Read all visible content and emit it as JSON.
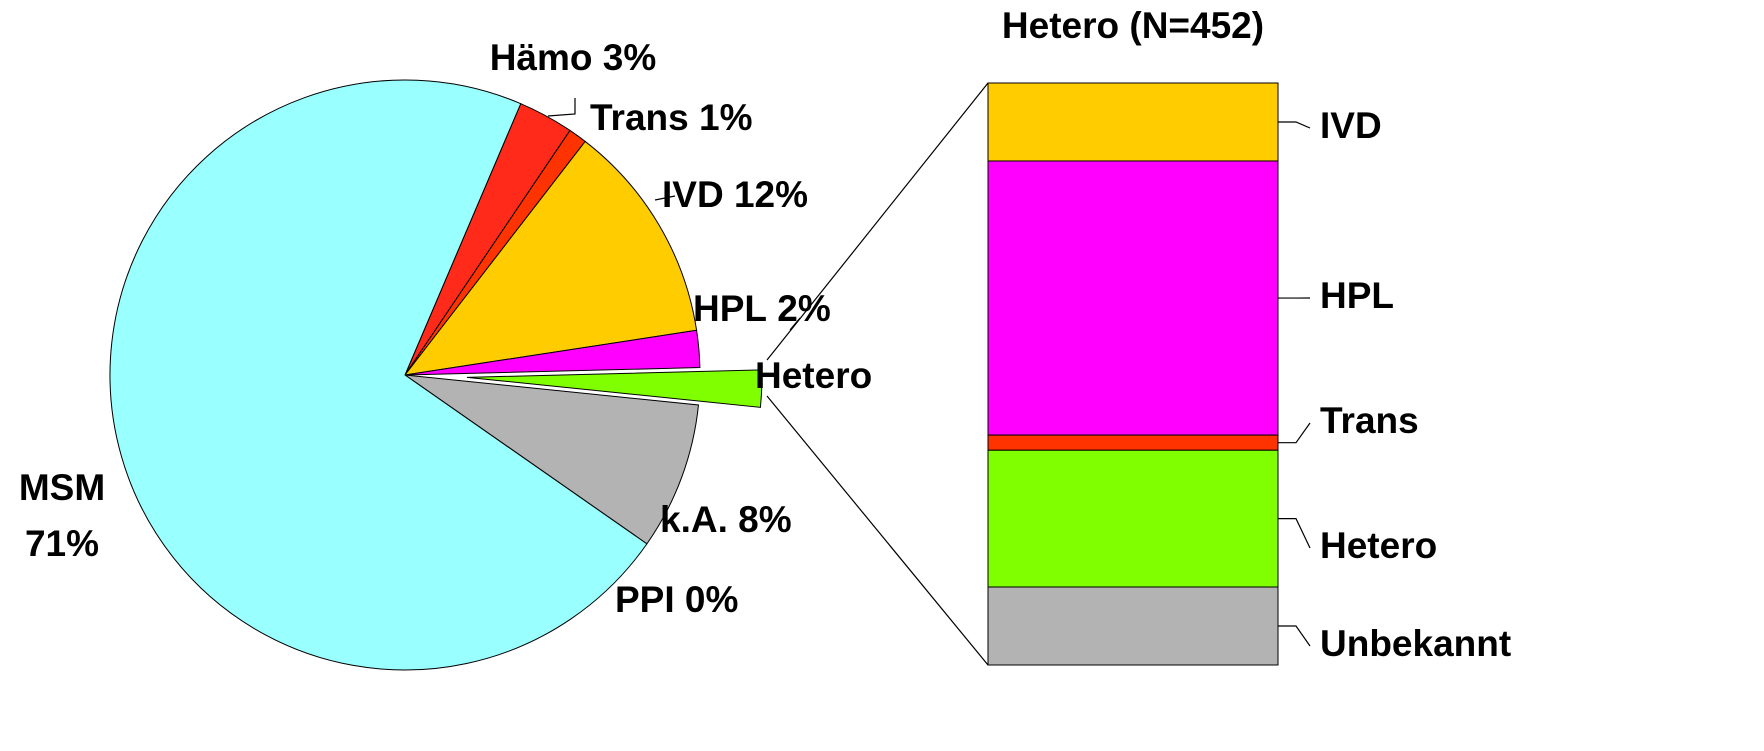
{
  "chart_data": [
    {
      "type": "pie",
      "categories": [
        "Hämo",
        "Trans",
        "IVD",
        "HPL",
        "Hetero",
        "k.A.",
        "PPI",
        "MSM"
      ],
      "values": [
        3,
        1,
        12,
        2,
        2,
        8,
        0,
        71
      ],
      "value_labels": [
        "3%",
        "1%",
        "12%",
        "2%",
        null,
        "8%",
        "0%",
        "71%"
      ],
      "colors": [
        "#ff2a1a",
        "#ff3300",
        "#ffcc00",
        "#ff00ff",
        "#80ff00",
        "#b3b3b3",
        "#999999",
        "#99ffff"
      ],
      "exploded": "Hetero"
    },
    {
      "type": "stacked_bar",
      "title": "Hetero (N=452)",
      "categories": [
        "IVD",
        "HPL",
        "Trans",
        "Hetero",
        "Unbekannt"
      ],
      "values": [
        13.4,
        47.1,
        2.6,
        23.5,
        13.4
      ],
      "colors": [
        "#ffcc00",
        "#ff00ff",
        "#ff3300",
        "#80ff00",
        "#b3b3b3"
      ]
    }
  ]
}
